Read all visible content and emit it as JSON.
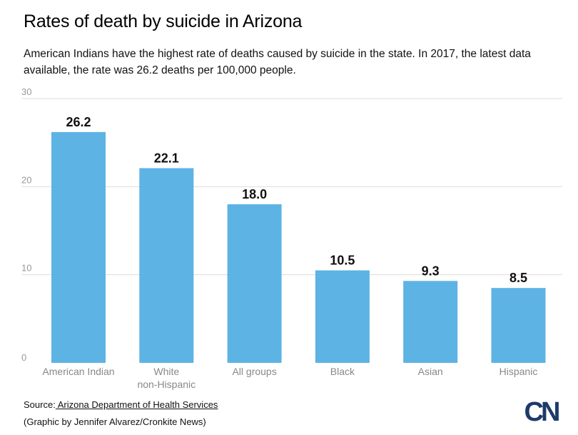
{
  "title": "Rates of death by suicide in Arizona",
  "subtitle": "American Indians have the highest rate of deaths caused by suicide in the state. In 2017, the latest data available, the rate was 26.2 deaths per 100,000 people.",
  "source": {
    "prefix": "Source:",
    "link_text": " Arizona Department of Health Services "
  },
  "credit": "(Graphic by Jennifer Alvarez/Cronkite News)",
  "logo": {
    "text": "CN",
    "color": "#1d3a6b"
  },
  "colors": {
    "bar": "#5db3e4",
    "grid": "#dddddd"
  },
  "chart_data": {
    "type": "bar",
    "categories": [
      "American Indian",
      "White\nnon-Hispanic",
      "All groups",
      "Black",
      "Asian",
      "Hispanic"
    ],
    "values": [
      26.2,
      22.1,
      18.0,
      10.5,
      9.3,
      8.5
    ],
    "value_labels": [
      "26.2",
      "22.1",
      "18.0",
      "10.5",
      "9.3",
      "8.5"
    ],
    "y_ticks": [
      "0",
      "10",
      "20",
      "30"
    ],
    "ylim": [
      0,
      30
    ],
    "grid": true
  }
}
